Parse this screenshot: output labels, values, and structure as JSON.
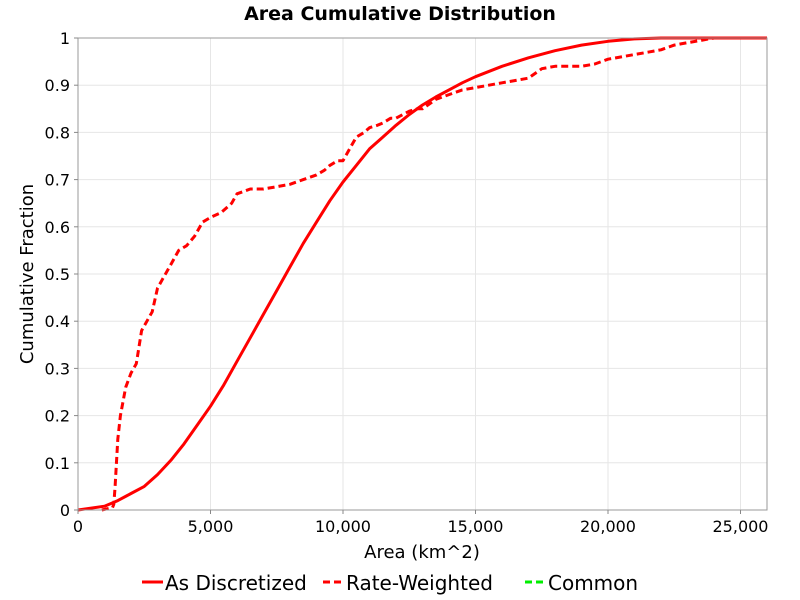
{
  "chart_data": {
    "type": "line",
    "title": "Area Cumulative Distribution",
    "xlabel": "Area (km^2)",
    "ylabel": "Cumulative Fraction",
    "xlim": [
      0,
      26000
    ],
    "ylim": [
      0,
      1
    ],
    "x_ticks": [
      {
        "value": 0,
        "label": "0"
      },
      {
        "value": 5000,
        "label": "5,000"
      },
      {
        "value": 10000,
        "label": "10,000"
      },
      {
        "value": 15000,
        "label": "15,000"
      },
      {
        "value": 20000,
        "label": "20,000"
      },
      {
        "value": 25000,
        "label": "25,000"
      }
    ],
    "y_ticks": [
      {
        "value": 0,
        "label": "0"
      },
      {
        "value": 0.1,
        "label": "0.1"
      },
      {
        "value": 0.2,
        "label": "0.2"
      },
      {
        "value": 0.3,
        "label": "0.3"
      },
      {
        "value": 0.4,
        "label": "0.4"
      },
      {
        "value": 0.5,
        "label": "0.5"
      },
      {
        "value": 0.6,
        "label": "0.6"
      },
      {
        "value": 0.7,
        "label": "0.7"
      },
      {
        "value": 0.8,
        "label": "0.8"
      },
      {
        "value": 0.9,
        "label": "0.9"
      },
      {
        "value": 1,
        "label": "1"
      }
    ],
    "grid": true,
    "legend_position": "bottom",
    "series": [
      {
        "name": "As Discretized",
        "color": "#ff0000",
        "style": "solid",
        "x": [
          0,
          1000,
          1500,
          2000,
          2500,
          3000,
          3500,
          4000,
          4500,
          5000,
          5500,
          6000,
          6500,
          7000,
          7500,
          8000,
          8500,
          9000,
          9500,
          10000,
          10500,
          11000,
          11500,
          12000,
          12500,
          13000,
          13500,
          14000,
          14500,
          15000,
          16000,
          17000,
          18000,
          19000,
          20000,
          21000,
          22000,
          23000,
          24000,
          25000,
          26000
        ],
        "y": [
          0,
          0.008,
          0.02,
          0.035,
          0.05,
          0.075,
          0.105,
          0.14,
          0.18,
          0.22,
          0.265,
          0.315,
          0.365,
          0.415,
          0.465,
          0.515,
          0.565,
          0.61,
          0.655,
          0.695,
          0.73,
          0.765,
          0.79,
          0.815,
          0.838,
          0.858,
          0.875,
          0.89,
          0.905,
          0.918,
          0.94,
          0.958,
          0.973,
          0.985,
          0.993,
          0.998,
          1,
          1,
          1,
          1,
          1
        ]
      },
      {
        "name": "Rate-Weighted",
        "color": "#ff0000",
        "style": "dashed",
        "x": [
          900,
          1300,
          1350,
          1400,
          1500,
          1600,
          1800,
          2000,
          2200,
          2400,
          2600,
          2800,
          3000,
          3200,
          3500,
          3800,
          4100,
          4400,
          4700,
          5000,
          5400,
          5800,
          6000,
          6500,
          7000,
          7500,
          8000,
          8500,
          9000,
          9300,
          9500,
          9800,
          10000,
          10300,
          10500,
          10800,
          11000,
          11300,
          11500,
          11800,
          12000,
          12500,
          12800,
          13000,
          13500,
          14000,
          14500,
          15000,
          15500,
          16000,
          16500,
          17000,
          17500,
          18000,
          18500,
          19000,
          19500,
          20000,
          20500,
          21000,
          21500,
          22000,
          22500,
          23000,
          23500,
          24000,
          25000,
          26000
        ],
        "y": [
          0,
          0.005,
          0.012,
          0.05,
          0.15,
          0.2,
          0.26,
          0.29,
          0.31,
          0.38,
          0.4,
          0.42,
          0.47,
          0.49,
          0.52,
          0.55,
          0.56,
          0.58,
          0.61,
          0.62,
          0.63,
          0.65,
          0.67,
          0.68,
          0.68,
          0.685,
          0.69,
          0.7,
          0.71,
          0.72,
          0.73,
          0.74,
          0.74,
          0.77,
          0.79,
          0.8,
          0.81,
          0.815,
          0.82,
          0.83,
          0.83,
          0.845,
          0.85,
          0.85,
          0.87,
          0.88,
          0.89,
          0.895,
          0.9,
          0.905,
          0.91,
          0.915,
          0.935,
          0.94,
          0.94,
          0.94,
          0.945,
          0.955,
          0.96,
          0.965,
          0.97,
          0.975,
          0.985,
          0.99,
          0.995,
          1,
          1,
          1
        ]
      },
      {
        "name": "Common",
        "color": "#00ee00",
        "style": "dashed",
        "x": [],
        "y": []
      }
    ]
  }
}
